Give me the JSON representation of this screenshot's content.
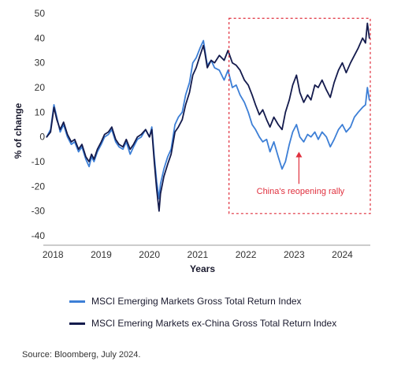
{
  "chart_data": {
    "type": "line",
    "title": "",
    "xlabel": "Years",
    "ylabel": "% of change",
    "xlim": [
      2017.8,
      2024.58
    ],
    "ylim": [
      -40,
      50
    ],
    "x_ticks": [
      "2018",
      "2019",
      "2020",
      "2021",
      "2022",
      "2023",
      "2024"
    ],
    "y_ticks": [
      50,
      40,
      30,
      20,
      10,
      0,
      -10,
      -20,
      -30,
      -40
    ],
    "grid": false,
    "legend_position": "bottom",
    "series": [
      {
        "name": "MSCI Emerging Markets Gross Total Return Index",
        "color": "#3d7fd6",
        "x": [
          2017.87,
          2017.95,
          2018.02,
          2018.08,
          2018.15,
          2018.22,
          2018.3,
          2018.38,
          2018.45,
          2018.53,
          2018.6,
          2018.68,
          2018.75,
          2018.8,
          2018.85,
          2018.92,
          2019.0,
          2019.07,
          2019.15,
          2019.22,
          2019.3,
          2019.37,
          2019.45,
          2019.52,
          2019.6,
          2019.67,
          2019.75,
          2019.83,
          2019.92,
          2020.0,
          2020.05,
          2020.1,
          2020.15,
          2020.2,
          2020.23,
          2020.3,
          2020.38,
          2020.45,
          2020.53,
          2020.6,
          2020.68,
          2020.75,
          2020.83,
          2020.9,
          2020.97,
          2021.05,
          2021.12,
          2021.15,
          2021.2,
          2021.28,
          2021.35,
          2021.45,
          2021.55,
          2021.63,
          2021.72,
          2021.8,
          2021.88,
          2021.97,
          2022.05,
          2022.13,
          2022.2,
          2022.28,
          2022.35,
          2022.43,
          2022.5,
          2022.58,
          2022.67,
          2022.75,
          2022.82,
          2022.9,
          2022.97,
          2023.05,
          2023.12,
          2023.2,
          2023.28,
          2023.35,
          2023.43,
          2023.5,
          2023.58,
          2023.67,
          2023.75,
          2023.83,
          2023.92,
          2024.0,
          2024.08,
          2024.17,
          2024.25,
          2024.33,
          2024.42,
          2024.48,
          2024.52,
          2024.56
        ],
        "values": [
          0,
          3,
          13,
          8,
          2,
          5,
          0,
          -3,
          -2,
          -6,
          -4,
          -9,
          -12,
          -8,
          -10,
          -6,
          -3,
          0,
          1,
          3,
          -2,
          -4,
          -5,
          -2,
          -7,
          -4,
          -1,
          0,
          3,
          0,
          4,
          -8,
          -18,
          -25,
          -19,
          -13,
          -8,
          -5,
          5,
          8,
          10,
          17,
          22,
          30,
          32,
          36,
          39,
          35,
          29,
          31,
          28,
          27,
          23,
          27,
          20,
          21,
          17,
          14,
          10,
          5,
          3,
          0,
          -2,
          -1,
          -6,
          -2,
          -8,
          -13,
          -10,
          -3,
          2,
          5,
          0,
          -2,
          1,
          0,
          2,
          -1,
          2,
          0,
          -4,
          -1,
          3,
          5,
          2,
          4,
          8,
          10,
          12,
          13,
          20,
          15
        ]
      },
      {
        "name": "MSCI Emering Markets ex-China Gross Total Return Index",
        "color": "#141b4d",
        "x": [
          2017.87,
          2017.95,
          2018.02,
          2018.08,
          2018.15,
          2018.22,
          2018.3,
          2018.38,
          2018.45,
          2018.53,
          2018.6,
          2018.68,
          2018.75,
          2018.8,
          2018.85,
          2018.92,
          2019.0,
          2019.07,
          2019.15,
          2019.22,
          2019.3,
          2019.37,
          2019.45,
          2019.52,
          2019.6,
          2019.67,
          2019.75,
          2019.83,
          2019.92,
          2020.0,
          2020.05,
          2020.1,
          2020.15,
          2020.2,
          2020.23,
          2020.3,
          2020.38,
          2020.45,
          2020.53,
          2020.6,
          2020.68,
          2020.75,
          2020.83,
          2020.9,
          2020.97,
          2021.05,
          2021.12,
          2021.15,
          2021.2,
          2021.28,
          2021.35,
          2021.45,
          2021.55,
          2021.63,
          2021.72,
          2021.8,
          2021.88,
          2021.97,
          2022.05,
          2022.13,
          2022.2,
          2022.28,
          2022.35,
          2022.43,
          2022.5,
          2022.58,
          2022.67,
          2022.75,
          2022.82,
          2022.9,
          2022.97,
          2023.05,
          2023.12,
          2023.2,
          2023.28,
          2023.35,
          2023.43,
          2023.5,
          2023.58,
          2023.67,
          2023.75,
          2023.83,
          2023.92,
          2024.0,
          2024.08,
          2024.17,
          2024.25,
          2024.33,
          2024.42,
          2024.48,
          2024.52,
          2024.56
        ],
        "values": [
          0,
          2,
          12,
          7,
          3,
          6,
          1,
          -2,
          -1,
          -5,
          -3,
          -8,
          -10,
          -7,
          -9,
          -5,
          -2,
          1,
          2,
          4,
          -1,
          -3,
          -4,
          -1,
          -5,
          -3,
          0,
          1,
          3,
          0,
          3,
          -10,
          -21,
          -30,
          -23,
          -16,
          -11,
          -7,
          2,
          4,
          7,
          13,
          18,
          25,
          28,
          33,
          37,
          34,
          28,
          31,
          30,
          33,
          31,
          35,
          30,
          29,
          27,
          23,
          21,
          17,
          13,
          9,
          11,
          7,
          4,
          8,
          5,
          3,
          10,
          15,
          21,
          25,
          18,
          14,
          17,
          15,
          21,
          20,
          23,
          19,
          16,
          22,
          27,
          30,
          26,
          30,
          33,
          36,
          40,
          38,
          46,
          40
        ]
      }
    ],
    "annotations": [
      {
        "text": "China's reopening rally",
        "color": "#e0303e",
        "box_x": [
          2021.65,
          2024.58
        ],
        "box_y": [
          -31,
          48
        ],
        "arrow_x": 2023.1,
        "arrow_from_y": -19,
        "arrow_to_y": -6
      }
    ]
  },
  "source": "Source: Bloomberg, July 2024."
}
